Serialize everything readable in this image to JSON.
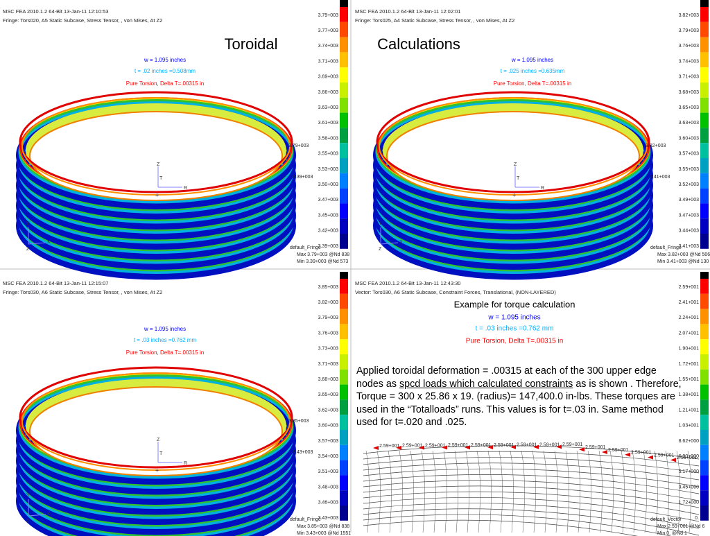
{
  "title_left": "Toroidal",
  "title_right": "Calculations",
  "panels": [
    {
      "header": [
        "MSC FEA 2010.1.2 64-Bit 13-Jan-11 12:10:53",
        "Fringe: Tors020, A5 Static Subcase, Stress Tensor, , von Mises, At Z2"
      ],
      "labels": [
        "w = 1.095 inches",
        "t = .02 inches =0.508mm",
        "Pure Torsion, Delta T=.00315 in"
      ],
      "legend": [
        "3.79+003",
        "3.77+003",
        "3.74+003",
        "3.71+003",
        "3.69+003",
        "3.66+003",
        "3.63+003",
        "3.61+003",
        "3.58+003",
        "3.55+003",
        "3.53+003",
        "3.50+003",
        "3.47+003",
        "3.45+003",
        "3.42+003",
        "3.39+003"
      ],
      "ring_labels": [
        "3.79+003",
        "3.39+003"
      ],
      "footer": [
        "default_Fringe",
        "Max 3.79+003 @Nd 838",
        "Min 3.39+003 @Nd 573"
      ]
    },
    {
      "header": [
        "MSC FEA 2010.1.2 64-Bit 13-Jan-11 12:02:01",
        "Fringe: Tors025, A4 Static Subcase, Stress Tensor, , von Mises, At Z2"
      ],
      "labels": [
        "w = 1.095 inches",
        "t = .025 inches =0.635mm",
        "Pure Torsion, Delta T=.00315 in"
      ],
      "legend": [
        "3.82+003",
        "3.79+003",
        "3.76+003",
        "3.74+003",
        "3.71+003",
        "3.68+003",
        "3.65+003",
        "3.63+003",
        "3.60+003",
        "3.57+003",
        "3.55+003",
        "3.52+003",
        "3.49+003",
        "3.47+003",
        "3.44+003",
        "3.41+003"
      ],
      "ring_labels": [
        "3.82+003",
        "3.41+003"
      ],
      "footer": [
        "default_Fringe",
        "Max 3.82+003 @Nd 506",
        "Min 3.41+003 @Nd 130"
      ]
    },
    {
      "header": [
        "MSC FEA 2010.1.2 64-Bit 13-Jan-11 12:15:07",
        "Fringe: Tors030, A6 Static Subcase, Stress Tensor, , von Mises, At Z2"
      ],
      "labels": [
        "w = 1.095 inches",
        "t = .03 inches =0.762 mm",
        "Pure Torsion, Delta T=.00315 in"
      ],
      "legend": [
        "3.85+003",
        "3.82+003",
        "3.79+003",
        "3.76+003",
        "3.73+003",
        "3.71+003",
        "3.68+003",
        "3.65+003",
        "3.62+003",
        "3.60+003",
        "3.57+003",
        "3.54+003",
        "3.51+003",
        "3.48+003",
        "3.46+003",
        "3.43+003"
      ],
      "ring_labels": [
        "3.85+003",
        "3.43+003"
      ],
      "footer": [
        "default_Fringe",
        "Max 3.85+003 @Nd 838",
        "Min 3.43+003 @Nd 1551"
      ]
    },
    {
      "header": [
        "MSC FEA 2010.1.2 64-Bit 13-Jan-11 12:43:30",
        "Vector: Tors030, A6 Static Subcase, Constraint Forces, Translational, (NON-LAYERED)"
      ],
      "labels": [
        "Example for torque calculation",
        "w = 1.095 inches",
        "t = .03 inches =0.762 mm",
        "Pure Torsion, Delta T=.00315 in"
      ],
      "legend": [
        "2.59+001",
        "2.41+001",
        "2.24+001",
        "2.07+001",
        "1.90+001",
        "1.72+001",
        "1.55+001",
        "1.38+001",
        "1.21+001",
        "1.03+001",
        "8.62+000",
        "6.90+000",
        "5.17+000",
        "3.45+000",
        "1.72+000",
        "0."
      ],
      "arrow_label": "2.59+001",
      "footer": [
        "default_Vector",
        "Max 2.59+001 @Nd 6",
        "Min 0. @Nd 1"
      ]
    }
  ],
  "axes": {
    "z": "Z",
    "t": "T",
    "r": "R",
    "y": "Y",
    "x": "X",
    "plus": "+"
  },
  "paragraph": {
    "part1": "Applied toroidal deformation = .00315 at each of the 300 upper edge nodes as ",
    "underlined": "spcd loads which calculated constraints",
    "part2": " as is shown . Therefore, Torque = 300 x 25.86 x 19. (radius)= 147,400.0 in-lbs. These torques are used in the “Totalloads” runs. This values is for t=.03 in. Same method used for  t=.020 and .025."
  }
}
